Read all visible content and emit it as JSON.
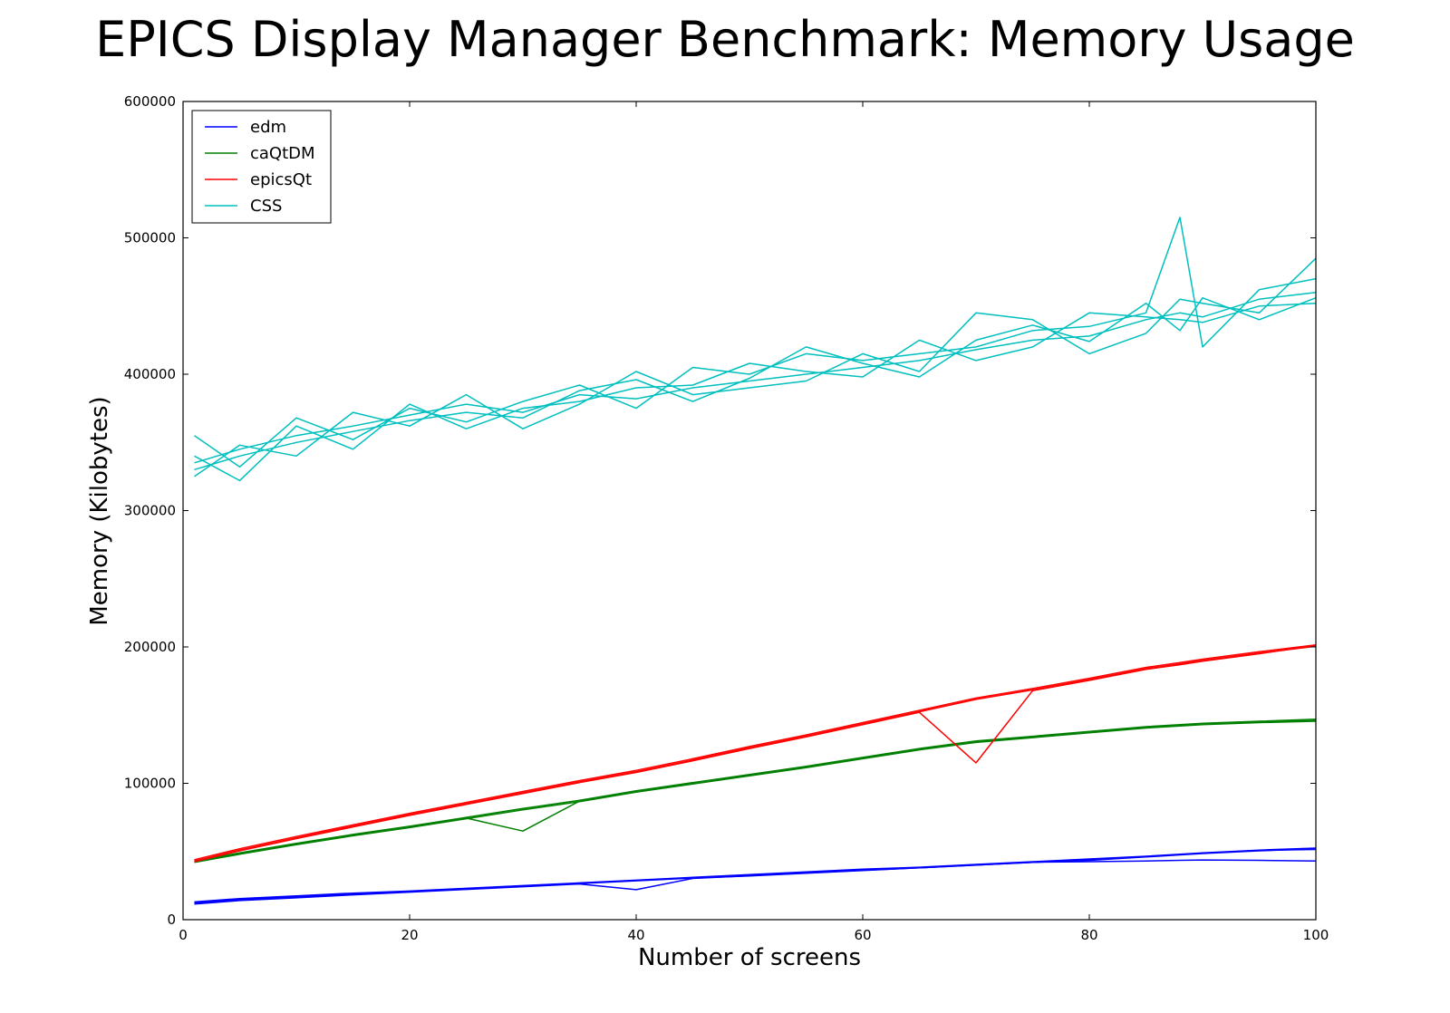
{
  "chart_data": {
    "type": "line",
    "title": "EPICS Display Manager Benchmark: Memory Usage",
    "xlabel": "Number of screens",
    "ylabel": "Memory (Kilobytes)",
    "xlim": [
      0,
      100
    ],
    "ylim": [
      0,
      600000
    ],
    "xticks": [
      0,
      20,
      40,
      60,
      80,
      100
    ],
    "yticks": [
      0,
      100000,
      200000,
      300000,
      400000,
      500000,
      600000
    ],
    "grid": false,
    "legend_position": "top-left",
    "x": [
      1,
      5,
      10,
      15,
      20,
      25,
      30,
      35,
      40,
      45,
      50,
      55,
      60,
      65,
      70,
      75,
      80,
      85,
      88,
      90,
      95,
      100
    ],
    "series": [
      {
        "name": "edm",
        "color": "#0000ff",
        "runs": [
          [
            12000,
            14500,
            16500,
            18500,
            20500,
            22500,
            24500,
            26500,
            28500,
            30500,
            32000,
            34000,
            36000,
            38000,
            40000,
            42000,
            43500,
            46000,
            47500,
            48500,
            50500,
            52000
          ],
          [
            13000,
            15500,
            17500,
            19500,
            21000,
            23000,
            25000,
            27000,
            29000,
            31000,
            33000,
            35000,
            37000,
            38500,
            40500,
            42500,
            44500,
            46500,
            48000,
            49000,
            51000,
            52500
          ],
          [
            12500,
            15000,
            17000,
            19000,
            20800,
            22800,
            24700,
            26800,
            28800,
            30800,
            32500,
            34500,
            36500,
            38200,
            40200,
            42200,
            42500,
            43000,
            43500,
            43800,
            43500,
            43000
          ],
          [
            11500,
            14000,
            16000,
            18200,
            20200,
            22200,
            24200,
            26200,
            22000,
            30200,
            32200,
            34200,
            36200,
            38000,
            40000,
            42000,
            44000,
            46200,
            47800,
            48800,
            50800,
            51500
          ]
        ]
      },
      {
        "name": "caQtDM",
        "color": "#008000",
        "runs": [
          [
            42000,
            48000,
            55000,
            61500,
            67500,
            74000,
            80500,
            86500,
            93500,
            99500,
            105500,
            111500,
            118000,
            124500,
            130000,
            133500,
            137000,
            140500,
            142000,
            143000,
            144500,
            145500
          ],
          [
            43000,
            49000,
            56000,
            62500,
            68500,
            75000,
            81500,
            87500,
            94500,
            100500,
            106500,
            112500,
            119000,
            125500,
            131000,
            134500,
            138000,
            141500,
            143000,
            144000,
            145500,
            147000
          ],
          [
            42500,
            48500,
            55500,
            62000,
            68000,
            74500,
            65000,
            87000,
            94000,
            100000,
            106000,
            112000,
            118500,
            125000,
            130500,
            134000,
            137500,
            141000,
            142500,
            143500,
            145000,
            146000
          ]
        ]
      },
      {
        "name": "epicsQt",
        "color": "#ff0000",
        "runs": [
          [
            43000,
            51000,
            60000,
            68500,
            77000,
            85000,
            93000,
            101000,
            108500,
            117000,
            126000,
            134500,
            143500,
            152500,
            161500,
            168500,
            176000,
            184000,
            187500,
            190000,
            195500,
            200500
          ],
          [
            44000,
            52000,
            61000,
            69500,
            78000,
            86000,
            94000,
            102000,
            109500,
            118000,
            127000,
            135500,
            144500,
            153500,
            162500,
            169500,
            177000,
            185000,
            188500,
            191000,
            196500,
            201500
          ],
          [
            42500,
            50500,
            59500,
            68000,
            76500,
            84500,
            92500,
            100500,
            108000,
            116500,
            125500,
            134000,
            143000,
            152000,
            115000,
            168000,
            175500,
            183500,
            187000,
            189500,
            195000,
            201000
          ]
        ]
      },
      {
        "name": "CSS",
        "color": "#00bfbf",
        "runs": [
          [
            335000,
            345000,
            355000,
            362000,
            370000,
            378000,
            372000,
            385000,
            382000,
            390000,
            395000,
            400000,
            405000,
            410000,
            418000,
            425000,
            428000,
            440000,
            445000,
            442000,
            455000,
            460000
          ],
          [
            355000,
            332000,
            368000,
            352000,
            375000,
            365000,
            380000,
            392000,
            375000,
            405000,
            400000,
            415000,
            410000,
            415000,
            420000,
            432000,
            435000,
            445000,
            515000,
            420000,
            462000,
            470000
          ],
          [
            325000,
            348000,
            340000,
            372000,
            362000,
            385000,
            360000,
            378000,
            402000,
            385000,
            390000,
            395000,
            415000,
            402000,
            445000,
            440000,
            415000,
            430000,
            455000,
            452000,
            445000,
            485000
          ],
          [
            340000,
            322000,
            362000,
            345000,
            378000,
            360000,
            375000,
            380000,
            390000,
            392000,
            408000,
            402000,
            398000,
            425000,
            410000,
            420000,
            445000,
            442000,
            440000,
            438000,
            450000,
            452000
          ],
          [
            330000,
            340000,
            350000,
            358000,
            366000,
            372000,
            368000,
            388000,
            396000,
            380000,
            397000,
            420000,
            408000,
            398000,
            425000,
            436000,
            424000,
            452000,
            432000,
            456000,
            440000,
            456000
          ]
        ]
      }
    ]
  }
}
